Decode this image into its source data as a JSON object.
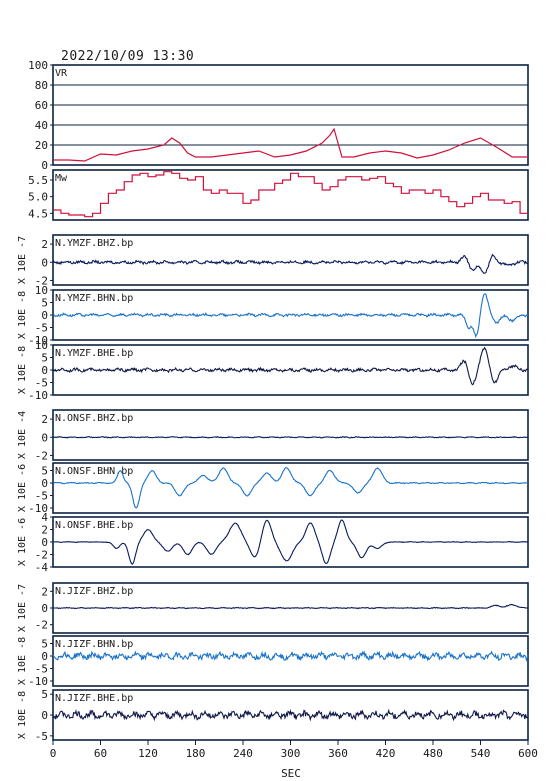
{
  "header": {
    "timestamp": "2022/10/09 13:30"
  },
  "x_axis": {
    "label": "SEC",
    "ticks": [
      0,
      60,
      120,
      180,
      240,
      300,
      360,
      420,
      480,
      540,
      600
    ]
  },
  "colors": {
    "axis": "#0c2340",
    "vr": "#d0103a",
    "mw": "#d0103a",
    "gridline": "#0c2340",
    "navy": "#0a1a5c",
    "blue": "#1a73c8",
    "darkblue": "#101848"
  },
  "chart_data": [
    {
      "type": "line",
      "id": "vr",
      "title": "VR",
      "ylim": [
        0,
        100
      ],
      "yticks": [
        0,
        20,
        40,
        60,
        80,
        100
      ],
      "ytick_labels": [
        "0",
        "20",
        "40",
        "60",
        "80",
        "100"
      ],
      "grid": true,
      "x": [
        0,
        20,
        40,
        60,
        80,
        100,
        120,
        140,
        150,
        160,
        170,
        180,
        200,
        220,
        240,
        260,
        280,
        300,
        320,
        340,
        350,
        355,
        365,
        380,
        400,
        420,
        440,
        460,
        480,
        500,
        520,
        540,
        560,
        580,
        600
      ],
      "values": [
        5,
        5,
        4,
        11,
        10,
        14,
        16,
        20,
        27,
        22,
        12,
        8,
        8,
        10,
        12,
        14,
        8,
        10,
        14,
        22,
        30,
        36,
        8,
        8,
        12,
        14,
        12,
        7,
        10,
        15,
        22,
        27,
        18,
        8,
        8
      ]
    },
    {
      "type": "line",
      "id": "mw",
      "title": "Mw",
      "ylim": [
        4.3,
        5.8
      ],
      "yticks": [
        4.5,
        5.0,
        5.5
      ],
      "ytick_labels": [
        "4.5",
        "5.0",
        "5.5"
      ],
      "x": [
        0,
        10,
        20,
        30,
        40,
        50,
        60,
        70,
        80,
        90,
        100,
        110,
        120,
        130,
        140,
        150,
        160,
        170,
        180,
        190,
        200,
        210,
        220,
        230,
        240,
        250,
        260,
        270,
        280,
        290,
        300,
        310,
        320,
        330,
        340,
        350,
        360,
        370,
        380,
        390,
        400,
        410,
        420,
        430,
        440,
        450,
        460,
        470,
        480,
        490,
        500,
        510,
        520,
        530,
        540,
        550,
        560,
        570,
        580,
        590,
        600
      ],
      "values": [
        4.6,
        4.5,
        4.45,
        4.45,
        4.4,
        4.5,
        4.8,
        5.1,
        5.2,
        5.45,
        5.65,
        5.7,
        5.6,
        5.65,
        5.75,
        5.7,
        5.55,
        5.5,
        5.6,
        5.2,
        5.1,
        5.2,
        5.1,
        5.1,
        4.8,
        4.9,
        5.2,
        5.2,
        5.4,
        5.5,
        5.7,
        5.6,
        5.6,
        5.4,
        5.2,
        5.3,
        5.5,
        5.6,
        5.6,
        5.5,
        5.55,
        5.6,
        5.4,
        5.3,
        5.1,
        5.2,
        5.2,
        5.1,
        5.2,
        5.0,
        4.85,
        4.7,
        4.8,
        5.0,
        5.1,
        4.9,
        4.9,
        4.8,
        4.85,
        4.5,
        5.0
      ]
    },
    {
      "type": "line",
      "id": "ymzf-bhz",
      "title": "N.YMZF.BHZ.bp",
      "unit_label": "X 10E -7",
      "ylim": [
        -2.5,
        3
      ],
      "yticks": [
        -2,
        0,
        2
      ],
      "ytick_labels": [
        "-2",
        "0",
        "2"
      ],
      "color": "navy",
      "amplitude": 0.15,
      "events": [
        {
          "t": 520,
          "a": 0.6,
          "w": 6
        },
        {
          "t": 530,
          "a": -0.8,
          "w": 6
        },
        {
          "t": 545,
          "a": -1.2,
          "w": 7
        },
        {
          "t": 555,
          "a": 0.8,
          "w": 6
        },
        {
          "t": 575,
          "a": -0.3,
          "w": 8
        }
      ]
    },
    {
      "type": "line",
      "id": "ymzf-bhn",
      "title": "N.YMZF.BHN.bp",
      "unit_label": "X 10E -8",
      "ylim": [
        -10,
        10
      ],
      "yticks": [
        -10,
        -5,
        0,
        5,
        10
      ],
      "ytick_labels": [
        "-10",
        "-5",
        "0",
        "5",
        "10"
      ],
      "color": "blue",
      "amplitude": 0.5,
      "events": [
        {
          "t": 525,
          "a": -5,
          "w": 5
        },
        {
          "t": 535,
          "a": -9,
          "w": 5
        },
        {
          "t": 545,
          "a": 9,
          "w": 6
        },
        {
          "t": 560,
          "a": -3,
          "w": 6
        },
        {
          "t": 580,
          "a": -2,
          "w": 8
        }
      ]
    },
    {
      "type": "line",
      "id": "ymzf-bhe",
      "title": "N.YMZF.BHE.bp",
      "unit_label": "X 10E -8",
      "ylim": [
        -10,
        10
      ],
      "yticks": [
        -10,
        -5,
        0,
        5,
        10
      ],
      "ytick_labels": [
        "-10",
        "-5",
        "0",
        "5",
        "10"
      ],
      "color": "darkblue",
      "amplitude": 0.6,
      "events": [
        {
          "t": 520,
          "a": 4,
          "w": 6
        },
        {
          "t": 530,
          "a": -6,
          "w": 6
        },
        {
          "t": 545,
          "a": 9,
          "w": 7
        },
        {
          "t": 557,
          "a": -5,
          "w": 7
        },
        {
          "t": 580,
          "a": 1.5,
          "w": 8
        }
      ]
    },
    {
      "type": "line",
      "id": "onsf-bhz",
      "title": "N.ONSF.BHZ.bp",
      "unit_label": "X 10E -4",
      "ylim": [
        -2.5,
        3
      ],
      "yticks": [
        -2,
        0,
        2
      ],
      "ytick_labels": [
        "-2",
        "0",
        "2"
      ],
      "color": "navy",
      "amplitude": 0.05,
      "events": []
    },
    {
      "type": "line",
      "id": "onsf-bhn",
      "title": "N.ONSF.BHN.bp",
      "unit_label": "X 10E -6",
      "ylim": [
        -12,
        8
      ],
      "yticks": [
        -10,
        -5,
        0,
        5
      ],
      "ytick_labels": [
        "-10",
        "-5",
        "0",
        "5"
      ],
      "color": "blue",
      "amplitude": 0.2,
      "events": [
        {
          "t": 85,
          "a": 5,
          "w": 5
        },
        {
          "t": 105,
          "a": -10,
          "w": 6
        },
        {
          "t": 125,
          "a": 5,
          "w": 7
        },
        {
          "t": 160,
          "a": -5,
          "w": 8
        },
        {
          "t": 190,
          "a": 3,
          "w": 8
        },
        {
          "t": 215,
          "a": 6,
          "w": 8
        },
        {
          "t": 245,
          "a": -5,
          "w": 8
        },
        {
          "t": 270,
          "a": 4,
          "w": 8
        },
        {
          "t": 295,
          "a": 6,
          "w": 8
        },
        {
          "t": 325,
          "a": -5,
          "w": 8
        },
        {
          "t": 350,
          "a": 5,
          "w": 8
        },
        {
          "t": 385,
          "a": -4,
          "w": 8
        },
        {
          "t": 410,
          "a": 6,
          "w": 8
        }
      ]
    },
    {
      "type": "line",
      "id": "onsf-bhe",
      "title": "N.ONSF.BHE.bp",
      "unit_label": "X 10E -6",
      "ylim": [
        -4,
        4
      ],
      "yticks": [
        -4,
        -2,
        0,
        2,
        4
      ],
      "ytick_labels": [
        "-4",
        "-2",
        "0",
        "2",
        "4"
      ],
      "color": "navy",
      "amplitude": 0.05,
      "events": [
        {
          "t": 80,
          "a": -1,
          "w": 6
        },
        {
          "t": 100,
          "a": -3.5,
          "w": 6
        },
        {
          "t": 120,
          "a": 2,
          "w": 8
        },
        {
          "t": 145,
          "a": -1.5,
          "w": 8
        },
        {
          "t": 170,
          "a": -2,
          "w": 8
        },
        {
          "t": 200,
          "a": -2,
          "w": 8
        },
        {
          "t": 230,
          "a": 3,
          "w": 10
        },
        {
          "t": 255,
          "a": -2.5,
          "w": 8
        },
        {
          "t": 270,
          "a": 3.5,
          "w": 8
        },
        {
          "t": 295,
          "a": -3,
          "w": 10
        },
        {
          "t": 325,
          "a": 3,
          "w": 8
        },
        {
          "t": 345,
          "a": -3.5,
          "w": 7
        },
        {
          "t": 365,
          "a": 3.5,
          "w": 7
        },
        {
          "t": 390,
          "a": -2.5,
          "w": 8
        },
        {
          "t": 410,
          "a": -1,
          "w": 8
        }
      ]
    },
    {
      "type": "line",
      "id": "jizf-bhz",
      "title": "N.JIZF.BHZ.bp",
      "unit_label": "X 10E -7",
      "ylim": [
        -3,
        3
      ],
      "yticks": [
        -2,
        0,
        2
      ],
      "ytick_labels": [
        "-2",
        "0",
        "2"
      ],
      "color": "navy",
      "amplitude": 0.05,
      "events": [
        {
          "t": 560,
          "a": 0.3,
          "w": 8
        },
        {
          "t": 580,
          "a": 0.4,
          "w": 8
        }
      ]
    },
    {
      "type": "line",
      "id": "jizf-bhn",
      "title": "N.JIZF.BHN.bp",
      "unit_label": "X 10E -8",
      "ylim": [
        -12,
        8
      ],
      "yticks": [
        -10,
        -5,
        0,
        5
      ],
      "ytick_labels": [
        "-10",
        "-5",
        "0",
        "5"
      ],
      "color": "blue",
      "amplitude": 1.2,
      "events": []
    },
    {
      "type": "line",
      "id": "jizf-bhe",
      "title": "N.JIZF.BHE.bp",
      "unit_label": "X 10E -8",
      "ylim": [
        -6,
        6
      ],
      "yticks": [
        -5,
        0,
        5
      ],
      "ytick_labels": [
        "-5",
        "0",
        "5"
      ],
      "color": "darkblue",
      "amplitude": 0.8,
      "events": []
    }
  ]
}
